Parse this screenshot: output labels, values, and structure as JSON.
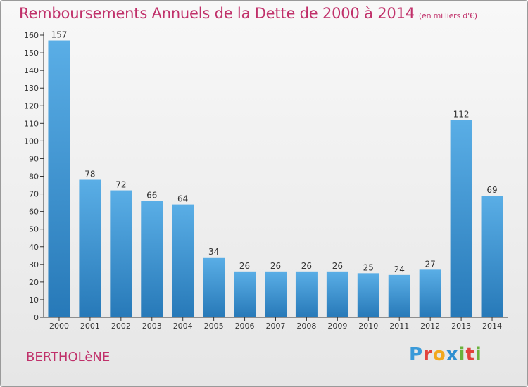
{
  "header": {
    "title": "Remboursements Annuels de la Dette de 2000 à 2014",
    "subtitle": "(en milliers d'€)"
  },
  "footer": {
    "commune": "BERTHOLèNE",
    "logo_letters": [
      "P",
      "r",
      "o",
      "x",
      "i",
      "t",
      "i"
    ],
    "logo_colors": [
      "#3a9ad9",
      "#e2423c",
      "#f2a81d",
      "#2e8fd0",
      "#6ab23c",
      "#e2423c",
      "#6ab23c"
    ]
  },
  "colors": {
    "bar_light": "#5aaee6",
    "bar_dark": "#2779b8",
    "axis": "#333333",
    "grid": "#cfcfcf"
  },
  "chart_data": {
    "type": "bar",
    "categories": [
      "2000",
      "2001",
      "2002",
      "2003",
      "2004",
      "2005",
      "2006",
      "2007",
      "2008",
      "2009",
      "2010",
      "2011",
      "2012",
      "2013",
      "2014"
    ],
    "values": [
      157,
      78,
      72,
      66,
      64,
      34,
      26,
      26,
      26,
      26,
      25,
      24,
      27,
      112,
      69
    ],
    "data_labels": [
      "157",
      "78",
      "72",
      "66",
      "64",
      "34",
      "26",
      "26",
      "26",
      "26",
      "25",
      "24",
      "27",
      "112",
      "69"
    ],
    "ylim": [
      0,
      160
    ],
    "yticks": [
      0,
      10,
      20,
      30,
      40,
      50,
      60,
      70,
      80,
      90,
      100,
      110,
      120,
      130,
      140,
      150,
      160
    ],
    "grid": false
  }
}
